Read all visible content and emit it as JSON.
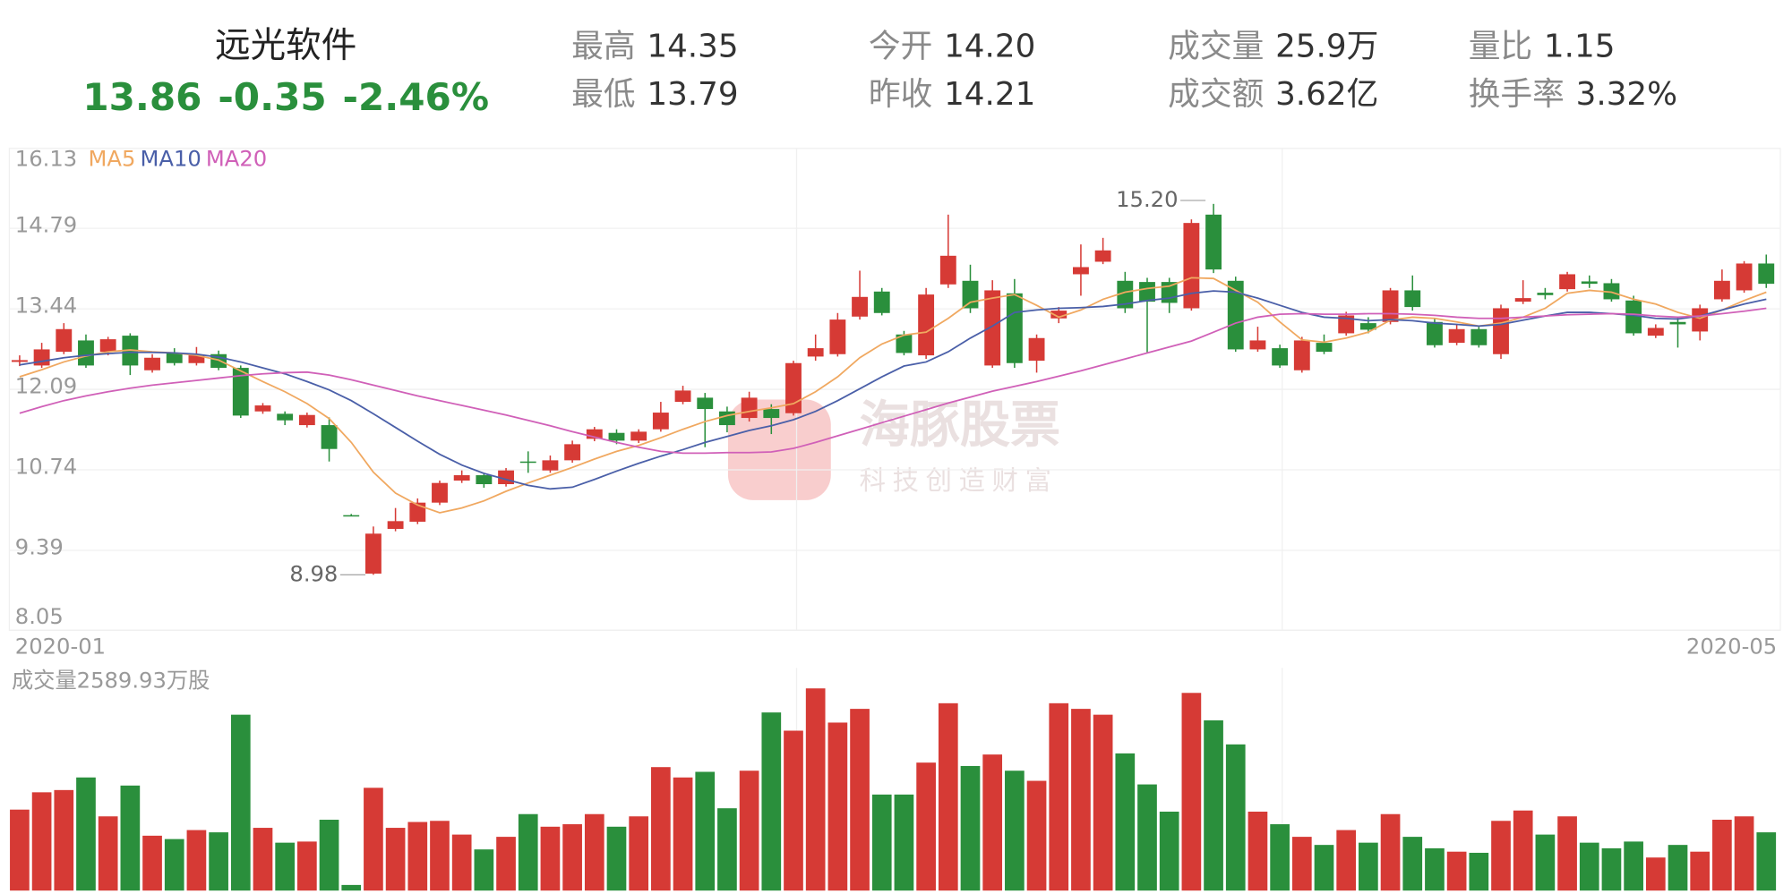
{
  "header": {
    "name": "远光软件",
    "price": "13.86",
    "change": "-0.35",
    "change_pct": "-2.46%",
    "stats": [
      {
        "label": "最高",
        "value": "14.35"
      },
      {
        "label": "最低",
        "value": "13.79"
      },
      {
        "label": "今开",
        "value": "14.20"
      },
      {
        "label": "昨收",
        "value": "14.21"
      },
      {
        "label": "成交量",
        "value": "25.9万"
      },
      {
        "label": "成交额",
        "value": "3.62亿"
      },
      {
        "label": "量比",
        "value": "1.15"
      },
      {
        "label": "换手率",
        "value": "3.32%"
      }
    ]
  },
  "watermark": {
    "title": "海豚股票",
    "slogan": "科技创造财富"
  },
  "chart_data": {
    "type": "candlestick",
    "x_labels": [
      "2020-01",
      "2020-05"
    ],
    "ylim": [
      8.05,
      16.13
    ],
    "yticks": [
      8.05,
      9.39,
      10.74,
      12.09,
      13.44,
      14.79,
      16.13
    ],
    "grid": true,
    "up_color": "#d63a35",
    "down_color": "#2a8f3c",
    "open": [
      12.55,
      12.49,
      12.72,
      12.91,
      12.72,
      12.99,
      12.41,
      12.7,
      12.53,
      12.68,
      12.45,
      11.72,
      11.68,
      11.49,
      11.49,
      9.98,
      9.0,
      9.75,
      9.87,
      10.19,
      10.56,
      10.65,
      10.5,
      10.88,
      10.73,
      10.9,
      11.26,
      11.36,
      11.23,
      11.42,
      11.88,
      11.95,
      11.72,
      11.61,
      11.76,
      11.69,
      12.64,
      12.68,
      13.31,
      13.73,
      13.01,
      12.66,
      13.85,
      13.91,
      12.49,
      13.7,
      12.57,
      13.28,
      14.02,
      14.23,
      13.91,
      13.89,
      13.89,
      13.45,
      15.02,
      13.91,
      12.76,
      12.78,
      12.41,
      12.87,
      13.03,
      13.2,
      13.22,
      13.75,
      13.22,
      12.87,
      13.1,
      12.68,
      13.56,
      13.71,
      13.77,
      13.9,
      13.87,
      13.58,
      12.99,
      13.22,
      13.06,
      13.6,
      13.75,
      14.2
    ],
    "high": [
      12.66,
      12.87,
      13.2,
      13.01,
      12.97,
      13.03,
      12.68,
      12.78,
      12.8,
      12.74,
      12.49,
      11.86,
      11.72,
      11.7,
      11.62,
      10.0,
      9.79,
      10.1,
      10.26,
      10.56,
      10.73,
      10.69,
      10.77,
      11.05,
      10.98,
      11.23,
      11.46,
      11.42,
      11.42,
      11.88,
      12.15,
      12.03,
      11.8,
      12.05,
      11.84,
      12.57,
      13.01,
      13.37,
      14.08,
      13.79,
      13.07,
      13.79,
      15.02,
      14.18,
      13.92,
      13.94,
      13.01,
      13.47,
      14.52,
      14.63,
      14.06,
      13.96,
      13.96,
      14.94,
      15.2,
      13.98,
      13.14,
      12.84,
      12.97,
      13.01,
      13.39,
      13.3,
      13.79,
      14.0,
      13.28,
      13.18,
      13.14,
      13.51,
      13.92,
      13.79,
      14.06,
      14.0,
      13.94,
      13.66,
      13.18,
      13.3,
      13.51,
      14.1,
      14.24,
      14.35
    ],
    "low": [
      12.48,
      12.45,
      12.68,
      12.45,
      12.66,
      12.33,
      12.37,
      12.49,
      12.49,
      12.41,
      11.61,
      11.68,
      11.49,
      11.45,
      10.88,
      9.96,
      8.98,
      9.71,
      9.83,
      10.15,
      10.52,
      10.44,
      10.46,
      10.69,
      10.69,
      10.86,
      11.22,
      11.17,
      11.19,
      11.38,
      11.84,
      11.12,
      11.37,
      11.55,
      11.34,
      11.65,
      12.57,
      12.64,
      13.26,
      13.33,
      12.66,
      12.6,
      13.79,
      13.37,
      12.45,
      12.45,
      12.37,
      13.2,
      13.66,
      14.19,
      13.37,
      12.71,
      13.37,
      13.41,
      14.04,
      12.72,
      12.72,
      12.45,
      12.37,
      12.68,
      12.99,
      13.03,
      13.18,
      13.41,
      12.79,
      12.83,
      12.79,
      12.6,
      13.52,
      13.6,
      13.73,
      13.79,
      13.56,
      12.99,
      12.95,
      12.79,
      12.91,
      13.56,
      13.71,
      13.79
    ],
    "close": [
      12.58,
      12.76,
      13.1,
      12.49,
      12.93,
      12.49,
      12.62,
      12.53,
      12.66,
      12.45,
      11.65,
      11.82,
      11.57,
      11.66,
      11.09,
      9.98,
      9.67,
      9.88,
      10.19,
      10.52,
      10.65,
      10.5,
      10.73,
      10.86,
      10.9,
      11.17,
      11.42,
      11.23,
      11.38,
      11.7,
      12.07,
      11.76,
      11.49,
      11.95,
      11.61,
      12.53,
      12.78,
      13.26,
      13.64,
      13.37,
      12.7,
      13.68,
      14.33,
      13.45,
      13.75,
      12.53,
      12.95,
      13.41,
      14.14,
      14.42,
      13.45,
      13.56,
      13.54,
      14.88,
      14.1,
      12.76,
      12.91,
      12.49,
      12.91,
      12.72,
      13.33,
      13.09,
      13.75,
      13.47,
      12.83,
      13.1,
      12.83,
      13.45,
      13.62,
      13.67,
      14.02,
      13.86,
      13.6,
      13.03,
      13.12,
      13.18,
      13.45,
      13.91,
      14.2,
      13.86
    ],
    "ma": [
      {
        "name": "MA5",
        "color": "#f0a860",
        "values": [
          12.3,
          12.42,
          12.55,
          12.65,
          12.72,
          12.75,
          12.72,
          12.7,
          12.66,
          12.58,
          12.4,
          12.22,
          12.05,
          11.85,
          11.6,
          11.2,
          10.7,
          10.35,
          10.15,
          10.02,
          10.1,
          10.22,
          10.38,
          10.52,
          10.65,
          10.78,
          10.92,
          11.05,
          11.15,
          11.28,
          11.42,
          11.55,
          11.65,
          11.72,
          11.78,
          11.85,
          12.05,
          12.3,
          12.62,
          12.85,
          13.0,
          13.05,
          13.28,
          13.55,
          13.62,
          13.68,
          13.5,
          13.3,
          13.42,
          13.6,
          13.72,
          13.78,
          13.82,
          13.96,
          13.95,
          13.75,
          13.55,
          13.22,
          12.92,
          12.88,
          12.95,
          13.05,
          13.25,
          13.3,
          13.28,
          13.22,
          13.15,
          13.2,
          13.3,
          13.45,
          13.7,
          13.75,
          13.72,
          13.6,
          13.52,
          13.38,
          13.28,
          13.42,
          13.58,
          13.72
        ]
      },
      {
        "name": "MA10",
        "color": "#4a5fa8",
        "values": [
          12.5,
          12.56,
          12.62,
          12.66,
          12.69,
          12.71,
          12.71,
          12.7,
          12.68,
          12.63,
          12.55,
          12.45,
          12.35,
          12.22,
          12.08,
          11.9,
          11.68,
          11.45,
          11.22,
          11.0,
          10.82,
          10.68,
          10.58,
          10.48,
          10.42,
          10.45,
          10.58,
          10.72,
          10.85,
          10.97,
          11.08,
          11.2,
          11.3,
          11.4,
          11.48,
          11.58,
          11.72,
          11.9,
          12.1,
          12.3,
          12.48,
          12.55,
          12.72,
          12.95,
          13.15,
          13.38,
          13.42,
          13.45,
          13.46,
          13.48,
          13.52,
          13.58,
          13.62,
          13.7,
          13.74,
          13.72,
          13.62,
          13.5,
          13.38,
          13.3,
          13.28,
          13.24,
          13.26,
          13.24,
          13.2,
          13.18,
          13.15,
          13.18,
          13.25,
          13.32,
          13.38,
          13.38,
          13.36,
          13.33,
          13.28,
          13.27,
          13.32,
          13.42,
          13.52,
          13.6
        ]
      },
      {
        "name": "MA20",
        "color": "#d060b8",
        "values": [
          11.69,
          11.8,
          11.9,
          11.98,
          12.05,
          12.11,
          12.16,
          12.2,
          12.24,
          12.28,
          12.32,
          12.35,
          12.37,
          12.38,
          12.33,
          12.25,
          12.16,
          12.07,
          11.98,
          11.9,
          11.82,
          11.74,
          11.66,
          11.57,
          11.48,
          11.38,
          11.29,
          11.2,
          11.12,
          11.05,
          11.02,
          11.02,
          11.03,
          11.03,
          11.04,
          11.1,
          11.2,
          11.31,
          11.42,
          11.53,
          11.64,
          11.75,
          11.86,
          11.96,
          12.06,
          12.14,
          12.22,
          12.31,
          12.4,
          12.5,
          12.6,
          12.7,
          12.8,
          12.9,
          13.05,
          13.2,
          13.3,
          13.35,
          13.36,
          13.35,
          13.35,
          13.36,
          13.36,
          13.35,
          13.33,
          13.3,
          13.28,
          13.28,
          13.3,
          13.32,
          13.34,
          13.35,
          13.36,
          13.35,
          13.32,
          13.3,
          13.32,
          13.36,
          13.4,
          13.45
        ]
      }
    ],
    "annotations": [
      {
        "text": "15.20",
        "index": 54
      },
      {
        "text": "8.98",
        "index": 16
      }
    ],
    "volume_title": "成交量2589.93万股",
    "vlim": [
      0,
      9900
    ],
    "volume": [
      3600,
      4370,
      4470,
      5030,
      3300,
      4670,
      2440,
      2290,
      2690,
      2590,
      7820,
      2790,
      2130,
      2180,
      3150,
      250,
      4570,
      2790,
      3050,
      3100,
      2490,
      1830,
      2390,
      3400,
      2840,
      2950,
      3400,
      2840,
      3300,
      5490,
      5030,
      5280,
      3660,
      5330,
      7920,
      7110,
      8990,
      7470,
      8080,
      4270,
      4270,
      5690,
      8330,
      5540,
      6050,
      5330,
      4880,
      8330,
      8080,
      7820,
      6100,
      4720,
      3510,
      8790,
      7570,
      6500,
      3510,
      2950,
      2390,
      2030,
      2690,
      2130,
      3400,
      2390,
      1880,
      1730,
      1680,
      3100,
      3560,
      2490,
      3300,
      2130,
      1880,
      2180,
      1470,
      2030,
      1730,
      3150,
      3300,
      2590
    ]
  }
}
